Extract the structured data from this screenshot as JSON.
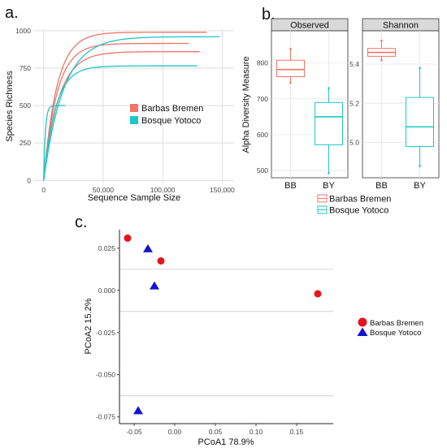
{
  "panel_labels": {
    "a": "a.",
    "b": "b.",
    "c": "c."
  },
  "colors": {
    "barbas_bremen": "#F07468",
    "bosque_yotoco": "#1DC6C8",
    "pcoa_bb": "#E8141C",
    "pcoa_by": "#1414D2"
  },
  "chart_data": [
    {
      "id": "a",
      "type": "line",
      "xlabel": "Sequence Sample Size",
      "ylabel": "Species Richness",
      "xlim": [
        -8000,
        160000
      ],
      "ylim": [
        -20,
        1010
      ],
      "xticks": [
        0,
        50000,
        100000,
        150000
      ],
      "xtick_labels": [
        "0",
        "50,000",
        "100,000",
        "150,000"
      ],
      "yticks": [
        0,
        250,
        500,
        750,
        1000
      ],
      "ytick_labels": [
        "0",
        "250",
        "500",
        "750",
        "1000"
      ],
      "grid": true,
      "legend": {
        "placement": "right",
        "entries": [
          "Barbas Bremen",
          "Bosque Yotoco"
        ]
      },
      "series": [
        {
          "name": "Barbas Bremen",
          "color": "barbas_bremen",
          "curves": [
            {
              "end_x": 137000,
              "asymptote": 990,
              "k": 9e-05
            },
            {
              "end_x": 122000,
              "asymptote": 915,
              "k": 9e-05
            },
            {
              "end_x": 131000,
              "asymptote": 860,
              "k": 8e-05
            }
          ]
        },
        {
          "name": "Bosque Yotoco",
          "color": "bosque_yotoco",
          "curves": [
            {
              "end_x": 148000,
              "asymptote": 960,
              "k": 6e-05
            },
            {
              "end_x": 129000,
              "asymptote": 765,
              "k": 0.0001
            },
            {
              "end_x": 18000,
              "asymptote": 500,
              "k": 0.0007
            }
          ]
        }
      ]
    },
    {
      "id": "b",
      "type": "box",
      "ylabel": "Alpha Diversity Measure",
      "categories": [
        "BB",
        "BY"
      ],
      "legend": {
        "placement": "bottom",
        "entries": [
          "Barbas Bremen",
          "Bosque Yotoco"
        ]
      },
      "facets": [
        {
          "name": "Observed",
          "ylim": [
            480,
            890
          ],
          "yticks": [
            500,
            600,
            700,
            800
          ],
          "ytick_labels": [
            "500",
            "600",
            "700",
            "800"
          ],
          "boxes": [
            {
              "category": "BB",
              "color": "barbas_bremen",
              "min": 745,
              "q1": 762,
              "median": 782,
              "q3": 808,
              "max": 840
            },
            {
              "category": "BY",
              "color": "bosque_yotoco",
              "min": 493,
              "q1": 572,
              "median": 650,
              "q3": 690,
              "max": 730
            }
          ]
        },
        {
          "name": "Shannon",
          "ylim": [
            4.82,
            5.57
          ],
          "yticks": [
            5.0,
            5.2,
            5.4
          ],
          "ytick_labels": [
            "5.0",
            "5.2",
            "5.4"
          ],
          "boxes": [
            {
              "category": "BB",
              "color": "barbas_bremen",
              "min": 5.42,
              "q1": 5.44,
              "median": 5.46,
              "q3": 5.48,
              "max": 5.52
            },
            {
              "category": "BY",
              "color": "bosque_yotoco",
              "min": 4.88,
              "q1": 4.98,
              "median": 5.08,
              "q3": 5.23,
              "max": 5.38
            }
          ]
        }
      ]
    },
    {
      "id": "c",
      "type": "scatter",
      "xlabel": "PCoA1 78.9%",
      "ylabel": "PCoA2 15.2%",
      "xlim": [
        -0.068,
        0.195
      ],
      "ylim": [
        -0.079,
        0.036
      ],
      "xticks": [
        -0.05,
        0.0,
        0.05,
        0.1,
        0.15
      ],
      "xtick_labels": [
        "-0.05",
        "0.00",
        "0.05",
        "0.10",
        "0.15"
      ],
      "yticks": [
        0.025,
        0.0,
        -0.025,
        -0.05,
        -0.075
      ],
      "ytick_labels": [
        "0.025",
        "0.000",
        "-0.025",
        "-0.050",
        "-0.075"
      ],
      "grid": true,
      "legend": {
        "placement": "right",
        "entries": [
          "Barbas Bremen",
          "Bosque Yotoco"
        ]
      },
      "series": [
        {
          "name": "Barbas Bremen",
          "marker": "circle",
          "color": "pcoa_bb",
          "x": [
            -0.058,
            -0.017,
            0.176
          ],
          "y": [
            0.031,
            0.0175,
            -0.002
          ]
        },
        {
          "name": "Bosque Yotoco",
          "marker": "triangle",
          "color": "pcoa_by",
          "x": [
            -0.033,
            -0.025,
            -0.045
          ],
          "y": [
            0.0245,
            0.0025,
            -0.0715
          ]
        }
      ]
    }
  ]
}
